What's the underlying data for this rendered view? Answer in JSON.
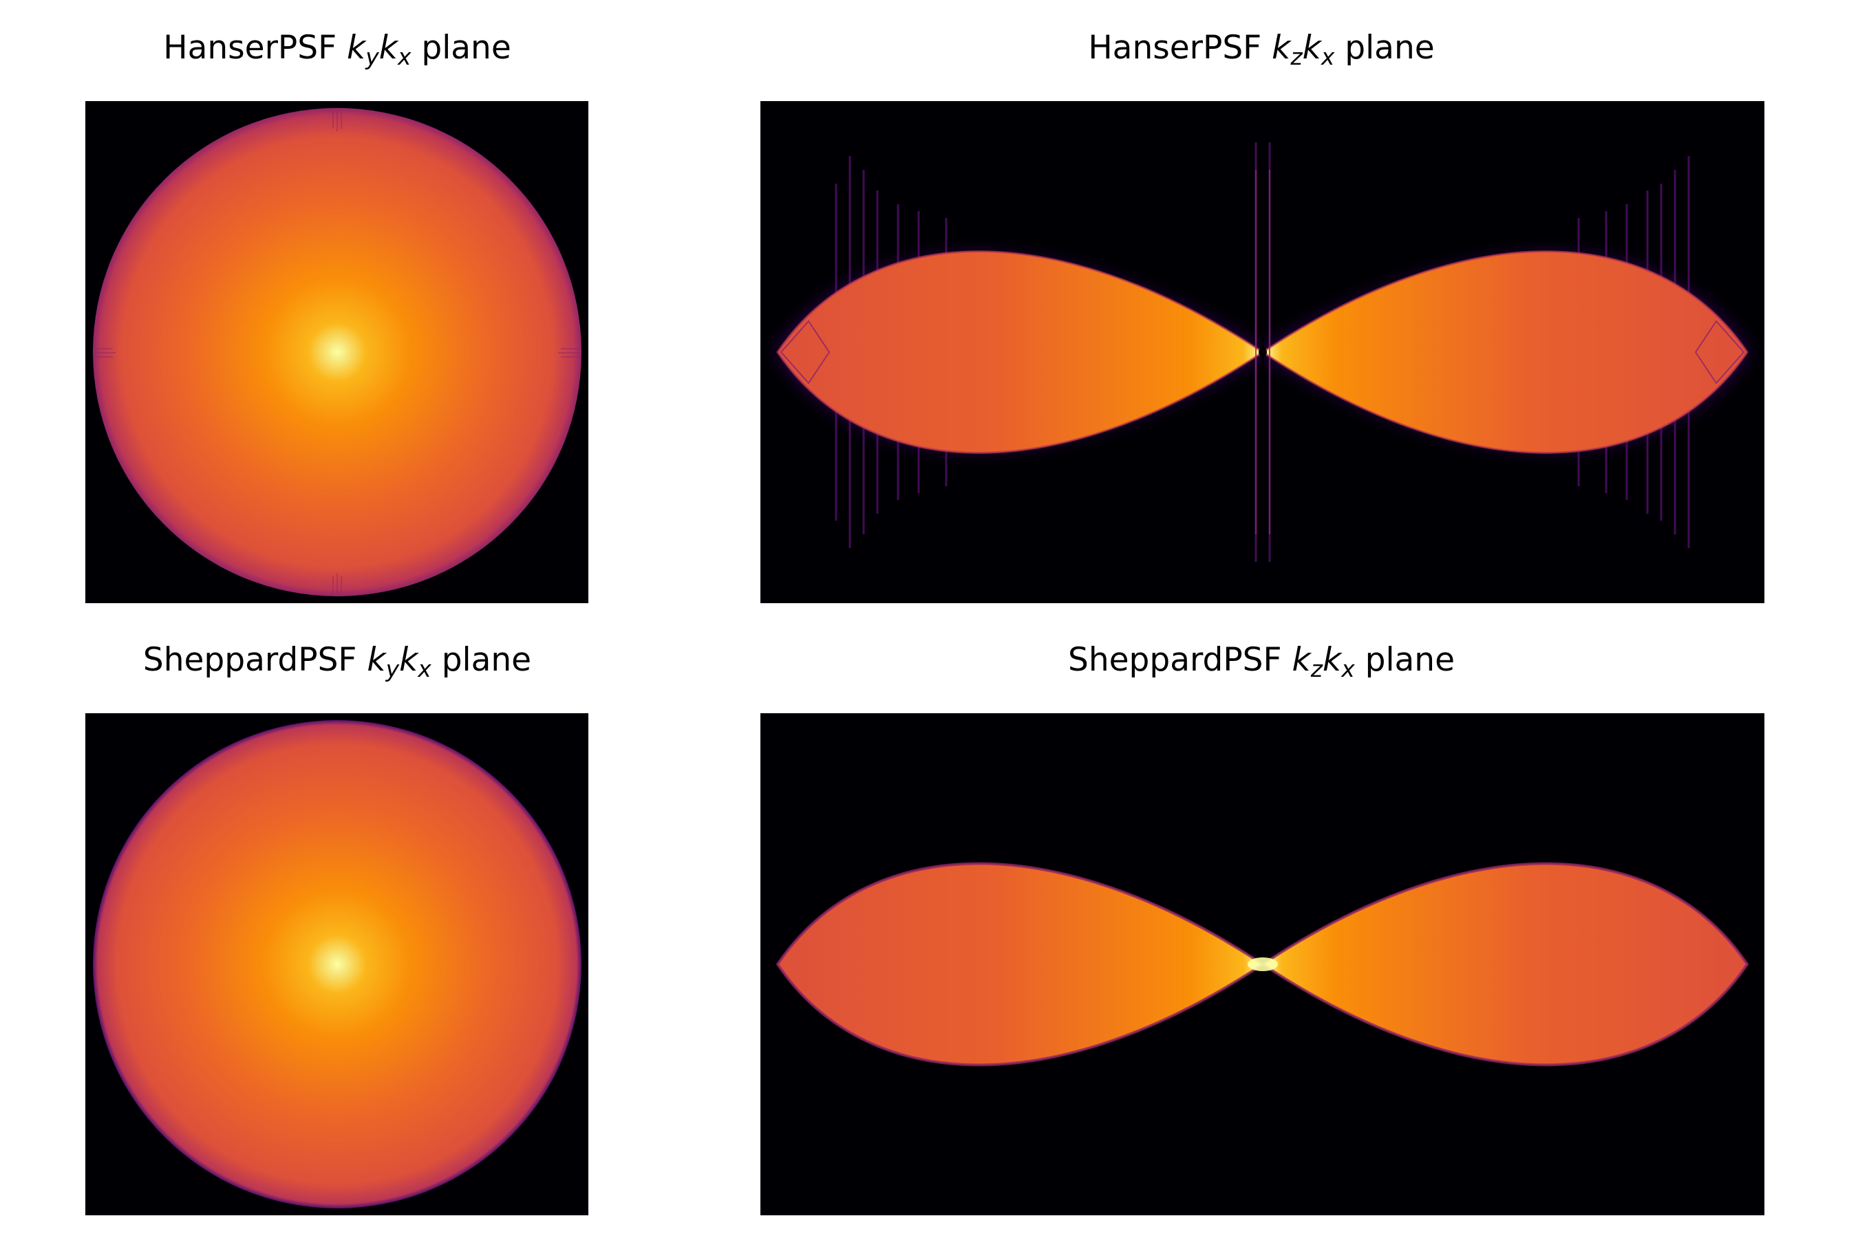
{
  "panels": [
    {
      "id": "hanser-kykx",
      "title_prefix": "HanserPSF ",
      "symbol_1": "k",
      "sub_1": "y",
      "symbol_2": "k",
      "sub_2": "x",
      "title_suffix": " plane",
      "shape": "disk"
    },
    {
      "id": "hanser-kzkx",
      "title_prefix": "HanserPSF ",
      "symbol_1": "k",
      "sub_1": "z",
      "symbol_2": "k",
      "sub_2": "x",
      "title_suffix": " plane",
      "shape": "double-lobe"
    },
    {
      "id": "sheppard-kykx",
      "title_prefix": "SheppardPSF ",
      "symbol_1": "k",
      "sub_1": "y",
      "symbol_2": "k",
      "sub_2": "x",
      "title_suffix": " plane",
      "shape": "disk"
    },
    {
      "id": "sheppard-kzkx",
      "title_prefix": "SheppardPSF ",
      "symbol_1": "k",
      "sub_1": "z",
      "symbol_2": "k",
      "sub_2": "x",
      "title_suffix": " plane",
      "shape": "double-lobe"
    }
  ],
  "colormap": {
    "name": "inferno",
    "background": "#000004",
    "dark_purple": "#420a68",
    "purple": "#932667",
    "red_orange": "#dd513a",
    "orange": "#f98e09",
    "yellow": "#fcffa4"
  }
}
